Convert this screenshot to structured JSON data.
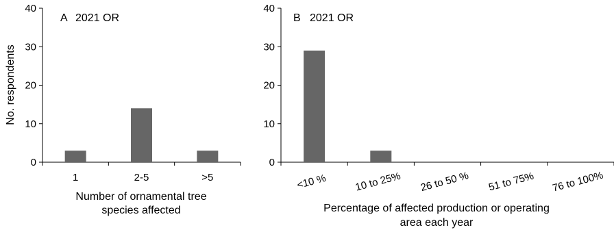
{
  "chart_data": [
    {
      "type": "bar",
      "panel_label": "A",
      "title": "2021 OR",
      "categories": [
        "1",
        "2-5",
        ">5"
      ],
      "values": [
        3,
        14,
        3
      ],
      "xlabel": [
        "Number of ornamental tree",
        "species affected"
      ],
      "ylabel": "No. respondents",
      "ylim": [
        0,
        40
      ],
      "yticks": [
        "0",
        "10",
        "20",
        "30",
        "40"
      ],
      "grid": false,
      "bar_color": "#666666"
    },
    {
      "type": "bar",
      "panel_label": "B",
      "title": "2021 OR",
      "categories": [
        "<10 %",
        "10  to 25%",
        "26 to 50 %",
        "51 to 75%",
        "76 to 100%"
      ],
      "values": [
        29,
        3,
        0,
        0,
        0
      ],
      "xlabel": [
        "Percentage of affected production or operating",
        "area each year"
      ],
      "ylabel": "",
      "ylim": [
        0,
        40
      ],
      "yticks": [
        "0",
        "10",
        "20",
        "30",
        "40"
      ],
      "grid": false,
      "bar_color": "#666666"
    }
  ]
}
